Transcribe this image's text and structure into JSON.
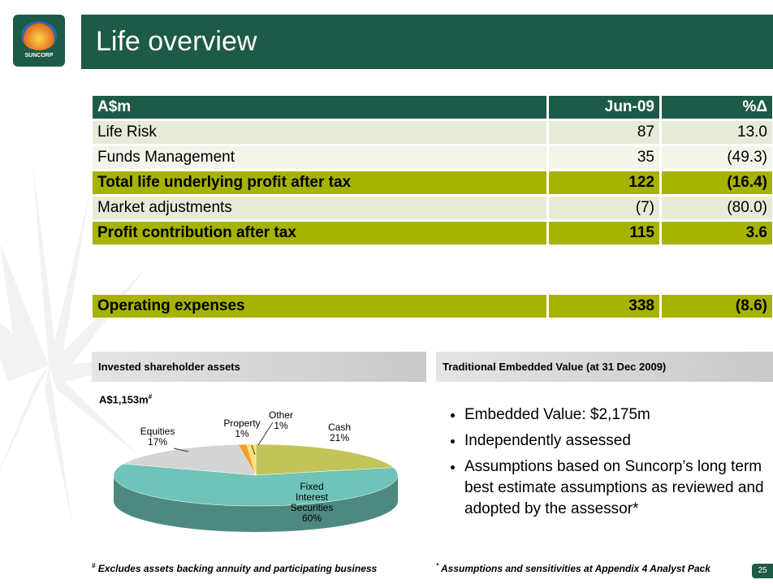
{
  "logo": "SUNCORP",
  "header": {
    "title": "Life overview"
  },
  "table": {
    "columns": [
      "A$m",
      "Jun-09",
      "%Δ"
    ],
    "rows": [
      [
        "Life Risk",
        "87",
        "13.0"
      ],
      [
        "Funds Management",
        "35",
        "(49.3)"
      ],
      [
        "Total life underlying profit after tax",
        "122",
        "(16.4)"
      ],
      [
        "Market adjustments",
        "(7)",
        "(80.0)"
      ],
      [
        "Profit contribution after tax",
        "115",
        "3.6"
      ]
    ],
    "extra_row": [
      "Operating expenses",
      "338",
      "(8.6)"
    ]
  },
  "left_panel": {
    "heading": "Invested shareholder assets",
    "total": "A$1,153m",
    "total_mark": "#",
    "footnote_mark": "#",
    "footnote": "Excludes assets backing annuity and participating business"
  },
  "chart_data": {
    "type": "pie",
    "categories": [
      "Cash",
      "Fixed Interest Securities",
      "Equities",
      "Property",
      "Other"
    ],
    "values": [
      21,
      60,
      17,
      1,
      1
    ],
    "value_labels": [
      "21%",
      "60%",
      "17%",
      "1%",
      "1%"
    ],
    "colors": [
      "#c3c458",
      "#6fc3b8",
      "#d4d4d4",
      "#f0a030",
      "#ffe070"
    ]
  },
  "right_panel": {
    "heading": "Traditional Embedded Value (at 31 Dec 2009)",
    "bullets": [
      "Embedded Value: $2,175m",
      "Independently assessed",
      "Assumptions based on Suncorp’s long term best estimate assumptions as reviewed and adopted by the assessor*"
    ],
    "footnote_mark": "*",
    "footnote": "Assumptions and sensitivities at Appendix 4 Analyst Pack"
  },
  "page_number": "25"
}
